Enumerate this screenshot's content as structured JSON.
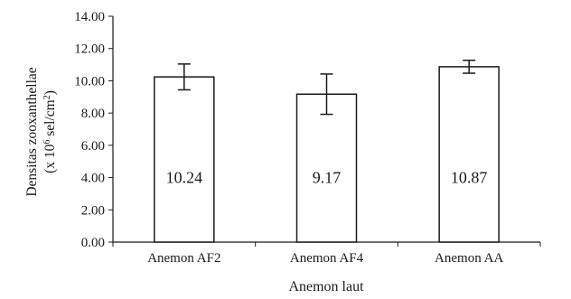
{
  "chart_data": {
    "type": "bar",
    "categories": [
      "Anemon AF2",
      "Anemon AF4",
      "Anemon AA"
    ],
    "values": [
      10.24,
      9.17,
      10.87
    ],
    "errors": [
      0.8,
      1.25,
      0.4
    ],
    "data_labels": [
      "10.24",
      "9.17",
      "10.87"
    ],
    "xlabel": "Anemon laut",
    "ylabel_line1": "Densitas zooxanthellae",
    "ylabel_line2_prefix": "(x 10",
    "ylabel_line2_exp": "6",
    "ylabel_line2_mid": " sel/cm",
    "ylabel_line2_exp2": "2",
    "ylabel_line2_suffix": ")",
    "ylim": [
      0,
      14
    ],
    "yticks": [
      "0.00",
      "2.00",
      "4.00",
      "6.00",
      "8.00",
      "10.00",
      "12.00",
      "14.00"
    ],
    "grid": false,
    "bar_fill": "#ffffff",
    "bar_stroke": "#1a1a1a"
  }
}
